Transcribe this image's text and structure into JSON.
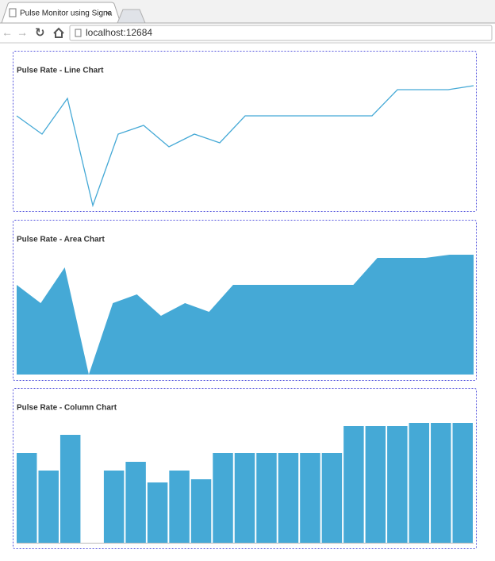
{
  "browser": {
    "tab_title": "Pulse Monitor using Signa",
    "url": "localhost:12684"
  },
  "chart_data": [
    {
      "type": "line",
      "title": "Pulse Rate - Line Chart",
      "color": "#45a9d6",
      "values": [
        113,
        90,
        135,
        0,
        90,
        101,
        74,
        90,
        79,
        113,
        113,
        113,
        113,
        113,
        113,
        146,
        146,
        146,
        151
      ]
    },
    {
      "type": "area",
      "title": "Pulse Rate - Area Chart",
      "color": "#45a9d6",
      "values": [
        113,
        90,
        135,
        0,
        90,
        101,
        74,
        90,
        79,
        113,
        113,
        113,
        113,
        113,
        113,
        147,
        147,
        147,
        151,
        151
      ]
    },
    {
      "type": "bar",
      "title": "Pulse Rate - Column Chart",
      "color": "#45a9d6",
      "values": [
        113,
        91,
        136,
        0,
        91,
        102,
        76,
        91,
        80,
        113,
        113,
        113,
        113,
        113,
        113,
        147,
        147,
        147,
        151,
        151,
        151
      ]
    }
  ]
}
